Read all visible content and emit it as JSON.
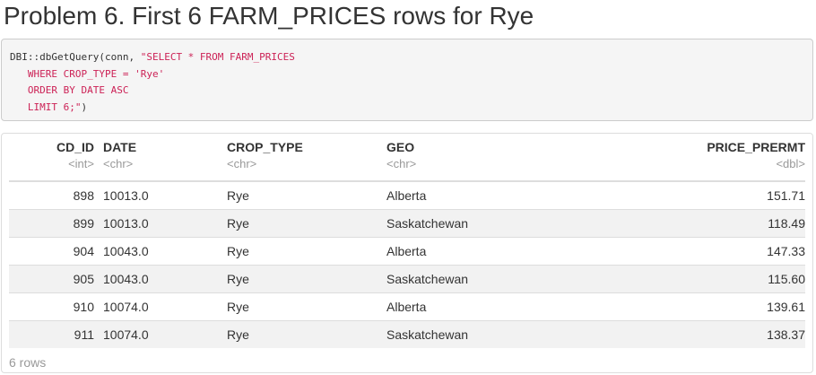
{
  "heading": "Problem 6. First 6 FARM_PRICES rows for Rye",
  "code": {
    "line1_plain": "DBI::dbGetQuery(conn, ",
    "line1_str": "\"SELECT * FROM FARM_PRICES",
    "line2_str": "   WHERE CROP_TYPE = 'Rye'",
    "line3_str": "   ORDER BY DATE ASC",
    "line4_str": "   LIMIT 6;\"",
    "line4_plain": ")"
  },
  "table": {
    "columns": [
      {
        "name": "CD_ID",
        "type": "<int>"
      },
      {
        "name": "DATE",
        "type": "<chr>"
      },
      {
        "name": "CROP_TYPE",
        "type": "<chr>"
      },
      {
        "name": "GEO",
        "type": "<chr>"
      },
      {
        "name": "PRICE_PRERMT",
        "type": "<dbl>"
      }
    ],
    "rows": [
      [
        "898",
        "10013.0",
        "Rye",
        "Alberta",
        "151.71"
      ],
      [
        "899",
        "10013.0",
        "Rye",
        "Saskatchewan",
        "118.49"
      ],
      [
        "904",
        "10043.0",
        "Rye",
        "Alberta",
        "147.33"
      ],
      [
        "905",
        "10043.0",
        "Rye",
        "Saskatchewan",
        "115.60"
      ],
      [
        "910",
        "10074.0",
        "Rye",
        "Alberta",
        "139.61"
      ],
      [
        "911",
        "10074.0",
        "Rye",
        "Saskatchewan",
        "138.37"
      ]
    ],
    "row_count_label": "6 rows"
  },
  "colors": {
    "string_literal": "#cc2256",
    "type_hint": "#999999",
    "stripe": "#f2f2f2"
  }
}
